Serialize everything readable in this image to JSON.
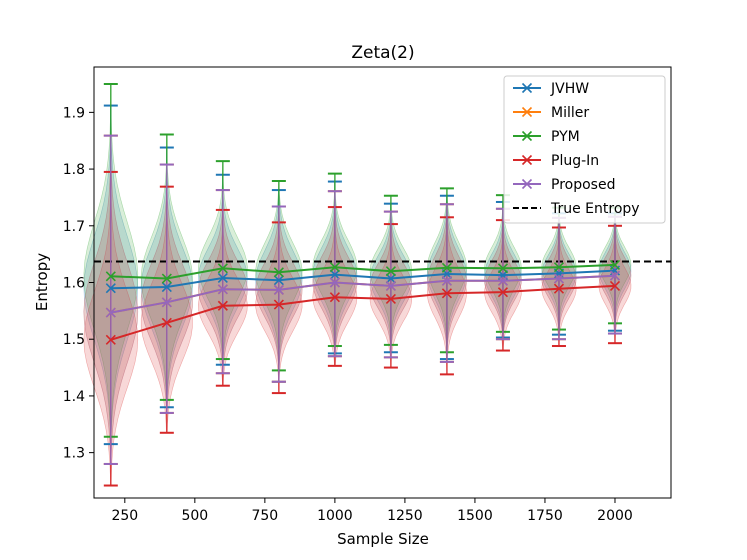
{
  "chart_data": {
    "type": "line",
    "title": "Zeta(2)",
    "xlabel": "Sample Size",
    "ylabel": "Entropy",
    "xlim": [
      140,
      2200
    ],
    "ylim": [
      1.22,
      1.98
    ],
    "x": [
      200,
      400,
      600,
      800,
      1000,
      1200,
      1400,
      1600,
      1800,
      2000
    ],
    "xticks": [
      250,
      500,
      750,
      1000,
      1250,
      1500,
      1750,
      2000
    ],
    "yticks": [
      1.3,
      1.4,
      1.5,
      1.6,
      1.7,
      1.8,
      1.9
    ],
    "grid": false,
    "legend_position": "top-right",
    "true_entropy": 1.637,
    "true_entropy_label": "True Entropy",
    "true_entropy_color": "#000000",
    "series": [
      {
        "name": "JVHW",
        "color": "#1f77b4",
        "means": [
          1.59,
          1.592,
          1.608,
          1.604,
          1.614,
          1.607,
          1.615,
          1.613,
          1.616,
          1.621
        ],
        "mins": [
          1.315,
          1.38,
          1.455,
          1.425,
          1.475,
          1.477,
          1.465,
          1.503,
          1.508,
          1.515
        ],
        "maxs": [
          1.912,
          1.838,
          1.79,
          1.763,
          1.778,
          1.739,
          1.753,
          1.742,
          1.722,
          1.722
        ]
      },
      {
        "name": "Miller",
        "color": "#ff7f0e",
        "means": [
          1.547,
          1.565,
          1.588,
          1.587,
          1.6,
          1.594,
          1.603,
          1.603,
          1.607,
          1.612
        ],
        "mins": [
          1.28,
          1.37,
          1.44,
          1.425,
          1.47,
          1.468,
          1.46,
          1.5,
          1.5,
          1.51
        ],
        "maxs": [
          1.859,
          1.808,
          1.763,
          1.734,
          1.761,
          1.725,
          1.738,
          1.73,
          1.714,
          1.716
        ]
      },
      {
        "name": "PYM",
        "color": "#2ca02c",
        "means": [
          1.611,
          1.607,
          1.625,
          1.618,
          1.627,
          1.62,
          1.626,
          1.625,
          1.627,
          1.631
        ],
        "mins": [
          1.328,
          1.393,
          1.465,
          1.445,
          1.488,
          1.49,
          1.477,
          1.513,
          1.517,
          1.528
        ],
        "maxs": [
          1.95,
          1.861,
          1.814,
          1.779,
          1.792,
          1.753,
          1.766,
          1.754,
          1.732,
          1.732
        ]
      },
      {
        "name": "Plug-In",
        "color": "#d62728",
        "means": [
          1.499,
          1.529,
          1.559,
          1.561,
          1.574,
          1.571,
          1.581,
          1.583,
          1.589,
          1.594
        ],
        "mins": [
          1.242,
          1.335,
          1.418,
          1.405,
          1.453,
          1.45,
          1.438,
          1.48,
          1.488,
          1.493
        ],
        "maxs": [
          1.795,
          1.769,
          1.728,
          1.706,
          1.733,
          1.703,
          1.715,
          1.71,
          1.697,
          1.7
        ]
      },
      {
        "name": "Proposed",
        "color": "#9467bd",
        "means": [
          1.547,
          1.565,
          1.588,
          1.587,
          1.6,
          1.594,
          1.603,
          1.603,
          1.607,
          1.612
        ],
        "mins": [
          1.28,
          1.37,
          1.44,
          1.425,
          1.47,
          1.468,
          1.46,
          1.5,
          1.5,
          1.51
        ],
        "maxs": [
          1.859,
          1.808,
          1.763,
          1.734,
          1.761,
          1.725,
          1.738,
          1.73,
          1.714,
          1.716
        ]
      }
    ]
  }
}
